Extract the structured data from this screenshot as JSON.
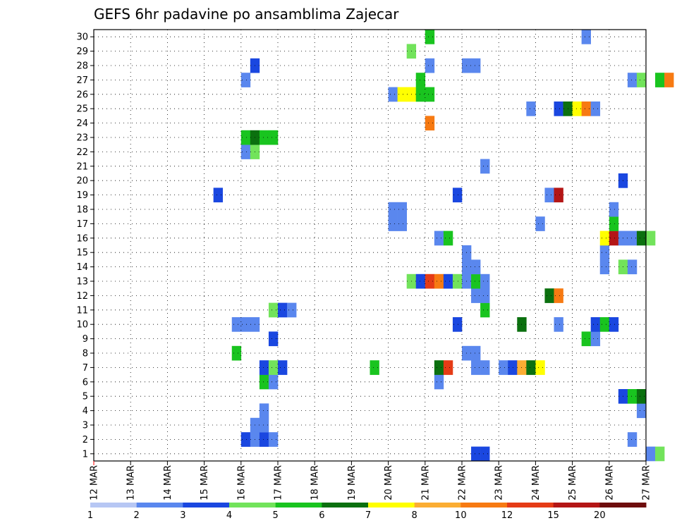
{
  "chart_data": {
    "type": "heatmap",
    "title": "GEFS 6hr padavine po ansamblima Zajecar",
    "xlabel": "",
    "ylabel": "",
    "x_ticks": [
      "12 MAR",
      "13 MAR",
      "14 MAR",
      "15 MAR",
      "16 MAR",
      "17 MAR",
      "18 MAR",
      "19 MAR",
      "20 MAR",
      "21 MAR",
      "22 MAR",
      "23 MAR",
      "24 MAR",
      "25 MAR",
      "26 MAR",
      "27 MAR"
    ],
    "y_ticks": [
      "1",
      "2",
      "3",
      "4",
      "5",
      "6",
      "7",
      "8",
      "9",
      "10",
      "11",
      "12",
      "13",
      "14",
      "15",
      "16",
      "17",
      "18",
      "19",
      "20",
      "21",
      "22",
      "23",
      "24",
      "25",
      "26",
      "27",
      "28",
      "29",
      "30"
    ],
    "x_range_days": [
      0,
      15
    ],
    "y_range": [
      0,
      30
    ],
    "grid": "dotted",
    "legend": {
      "position": "bottom",
      "labels": [
        "1",
        "2",
        "3",
        "4",
        "5",
        "6",
        "7",
        "8",
        "10",
        "12",
        "15",
        "20"
      ],
      "colors": [
        "#b7c7f4",
        "#5a87ee",
        "#1a47e0",
        "#72e35b",
        "#19c41f",
        "#0b700f",
        "#ffff00",
        "#fbad33",
        "#f77a12",
        "#e53b16",
        "#b41616",
        "#6e0d0d"
      ]
    },
    "member_cells": [
      {
        "m": 0,
        "t": [
          [
            41,
            2
          ],
          [
            42,
            2
          ],
          [
            60,
            1
          ],
          [
            61,
            3
          ]
        ]
      },
      {
        "m": 1,
        "t": [
          [
            16,
            2
          ],
          [
            17,
            1
          ],
          [
            18,
            2
          ],
          [
            19,
            1
          ],
          [
            58,
            1
          ]
        ]
      },
      {
        "m": 2,
        "t": [
          [
            17,
            1
          ],
          [
            18,
            1
          ]
        ]
      },
      {
        "m": 3,
        "t": [
          [
            18,
            1
          ],
          [
            59,
            1
          ]
        ]
      },
      {
        "m": 4,
        "t": [
          [
            57,
            2
          ],
          [
            58,
            4
          ],
          [
            59,
            5
          ]
        ]
      },
      {
        "m": 5,
        "t": [
          [
            18,
            4
          ],
          [
            19,
            1
          ],
          [
            37,
            1
          ]
        ]
      },
      {
        "m": 6,
        "t": [
          [
            18,
            2
          ],
          [
            19,
            3
          ],
          [
            20,
            2
          ],
          [
            30,
            4
          ],
          [
            37,
            5
          ],
          [
            38,
            9
          ],
          [
            41,
            1
          ],
          [
            42,
            1
          ],
          [
            44,
            1
          ],
          [
            45,
            2
          ],
          [
            46,
            7
          ],
          [
            47,
            5
          ],
          [
            48,
            6
          ]
        ]
      },
      {
        "m": 7,
        "t": [
          [
            15,
            4
          ],
          [
            40,
            1
          ],
          [
            41,
            1
          ]
        ]
      },
      {
        "m": 8,
        "t": [
          [
            19,
            2
          ],
          [
            53,
            4
          ],
          [
            54,
            1
          ]
        ]
      },
      {
        "m": 9,
        "t": [
          [
            15,
            1
          ],
          [
            16,
            1
          ],
          [
            17,
            1
          ],
          [
            39,
            2
          ],
          [
            46,
            5
          ],
          [
            50,
            1
          ],
          [
            54,
            2
          ],
          [
            55,
            4
          ],
          [
            56,
            2
          ]
        ]
      },
      {
        "m": 10,
        "t": [
          [
            19,
            3
          ],
          [
            20,
            2
          ],
          [
            21,
            1
          ],
          [
            42,
            4
          ]
        ]
      },
      {
        "m": 11,
        "t": [
          [
            41,
            1
          ],
          [
            42,
            1
          ],
          [
            49,
            5
          ],
          [
            50,
            8
          ]
        ]
      },
      {
        "m": 12,
        "t": [
          [
            34,
            3
          ],
          [
            35,
            2
          ],
          [
            36,
            9
          ],
          [
            37,
            8
          ],
          [
            38,
            2
          ],
          [
            39,
            3
          ],
          [
            40,
            1
          ],
          [
            41,
            4
          ],
          [
            42,
            1
          ]
        ]
      },
      {
        "m": 13,
        "t": [
          [
            40,
            1
          ],
          [
            41,
            1
          ],
          [
            55,
            1
          ],
          [
            57,
            3
          ],
          [
            58,
            1
          ]
        ]
      },
      {
        "m": 14,
        "t": [
          [
            40,
            1
          ],
          [
            55,
            1
          ]
        ]
      },
      {
        "m": 15,
        "t": [
          [
            37,
            1
          ],
          [
            38,
            4
          ],
          [
            55,
            6
          ],
          [
            56,
            10
          ],
          [
            57,
            1
          ],
          [
            58,
            1
          ],
          [
            59,
            5
          ],
          [
            60,
            3
          ]
        ]
      },
      {
        "m": 16,
        "t": [
          [
            32,
            1
          ],
          [
            33,
            1
          ],
          [
            48,
            1
          ],
          [
            56,
            4
          ]
        ]
      },
      {
        "m": 17,
        "t": [
          [
            32,
            1
          ],
          [
            33,
            1
          ],
          [
            56,
            1
          ]
        ]
      },
      {
        "m": 18,
        "t": [
          [
            13,
            2
          ],
          [
            39,
            2
          ],
          [
            49,
            1
          ],
          [
            50,
            10
          ]
        ]
      },
      {
        "m": 19,
        "t": [
          [
            57,
            2
          ]
        ]
      },
      {
        "m": 20,
        "t": [
          [
            42,
            1
          ]
        ]
      },
      {
        "m": 21,
        "t": [
          [
            16,
            1
          ],
          [
            17,
            3
          ]
        ]
      },
      {
        "m": 22,
        "t": [
          [
            16,
            4
          ],
          [
            17,
            5
          ],
          [
            18,
            4
          ],
          [
            19,
            4
          ]
        ]
      },
      {
        "m": 23,
        "t": [
          [
            36,
            8
          ]
        ]
      },
      {
        "m": 24,
        "t": [
          [
            47,
            1
          ],
          [
            50,
            2
          ],
          [
            51,
            5
          ],
          [
            52,
            6
          ],
          [
            53,
            8
          ],
          [
            54,
            1
          ]
        ]
      },
      {
        "m": 25,
        "t": [
          [
            32,
            1
          ],
          [
            33,
            6
          ],
          [
            34,
            6
          ],
          [
            35,
            4
          ],
          [
            36,
            4
          ]
        ]
      },
      {
        "m": 26,
        "t": [
          [
            16,
            1
          ],
          [
            35,
            4
          ],
          [
            58,
            1
          ],
          [
            59,
            3
          ],
          [
            61,
            4
          ],
          [
            62,
            8
          ]
        ]
      },
      {
        "m": 27,
        "t": [
          [
            17,
            2
          ],
          [
            36,
            1
          ],
          [
            40,
            1
          ],
          [
            41,
            1
          ]
        ]
      },
      {
        "m": 28,
        "t": [
          [
            34,
            3
          ]
        ]
      },
      {
        "m": 29,
        "t": [
          [
            36,
            4
          ],
          [
            53,
            1
          ]
        ]
      }
    ]
  }
}
